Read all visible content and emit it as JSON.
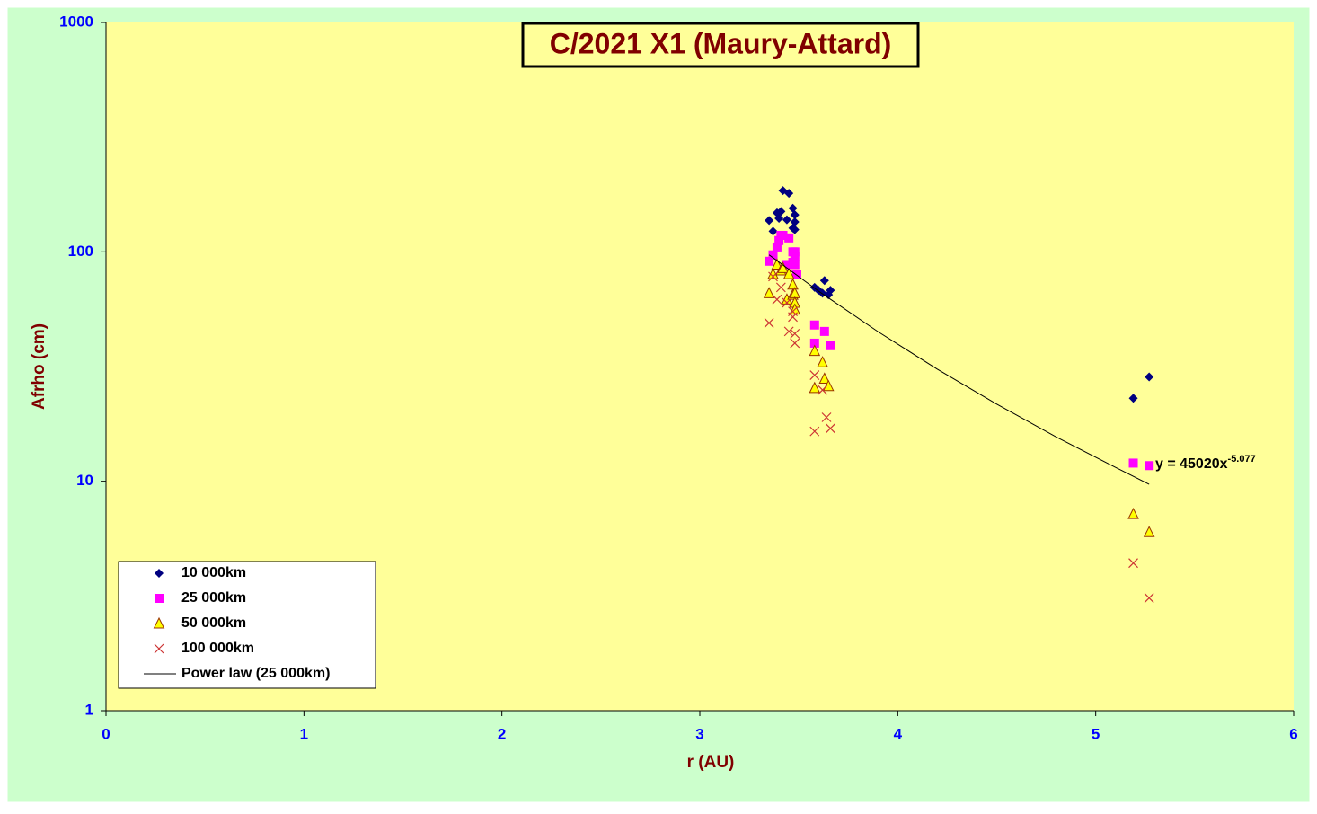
{
  "chart_data": {
    "type": "scatter",
    "title": "C/2021 X1 (Maury-Attard)",
    "x_label": "r (AU)",
    "y_label": "Afrho (cm)",
    "xlim": [
      0,
      6
    ],
    "xticks": [
      0,
      1,
      2,
      3,
      4,
      5,
      6
    ],
    "ylim": [
      1,
      1000
    ],
    "yticks": [
      1,
      10,
      100,
      1000
    ],
    "y_scale": "log",
    "legend": "lower left",
    "background": "#ffff99",
    "outer_background": "#ccffcc",
    "series": [
      {
        "name": "10 000km",
        "marker": "diamond",
        "color": "#000080",
        "x": [
          3.35,
          3.37,
          3.39,
          3.4,
          3.41,
          3.42,
          3.44,
          3.45,
          3.47,
          3.47,
          3.48,
          3.48,
          3.48,
          3.58,
          3.6,
          3.62,
          3.63,
          3.65,
          3.66,
          5.19,
          5.27
        ],
        "values": [
          137,
          123,
          148,
          140,
          150,
          185,
          138,
          180,
          155,
          127,
          145,
          135,
          125,
          70,
          68,
          66,
          75,
          65,
          68,
          23,
          28.5
        ]
      },
      {
        "name": "25 000km",
        "marker": "square",
        "color": "#ff00ff",
        "x": [
          3.35,
          3.37,
          3.39,
          3.4,
          3.41,
          3.42,
          3.44,
          3.45,
          3.47,
          3.47,
          3.48,
          3.48,
          3.48,
          3.49,
          3.58,
          3.58,
          3.63,
          3.66,
          5.19,
          5.27
        ],
        "values": [
          91,
          97,
          105,
          112,
          118,
          118,
          88,
          115,
          100,
          90,
          95,
          100,
          88,
          80,
          48,
          40,
          45,
          39,
          12,
          11.7
        ]
      },
      {
        "name": "50 000km",
        "marker": "triangle",
        "color": "#ffff00",
        "x": [
          3.35,
          3.37,
          3.39,
          3.41,
          3.42,
          3.44,
          3.45,
          3.47,
          3.47,
          3.48,
          3.48,
          3.48,
          3.58,
          3.58,
          3.62,
          3.63,
          3.65,
          5.19,
          5.27
        ],
        "values": [
          66,
          80,
          88,
          83,
          85,
          62,
          80,
          72,
          65,
          66,
          60,
          56,
          37,
          25.5,
          33,
          28,
          26,
          7.2,
          6
        ]
      },
      {
        "name": "100 000km",
        "marker": "x",
        "color": "#cc3333",
        "x": [
          3.35,
          3.37,
          3.39,
          3.41,
          3.44,
          3.45,
          3.47,
          3.47,
          3.48,
          3.48,
          3.58,
          3.58,
          3.62,
          3.64,
          3.66,
          5.19,
          5.27
        ],
        "values": [
          49,
          78,
          62,
          70,
          60,
          45,
          52,
          55,
          44,
          40,
          29,
          16.5,
          25,
          19,
          17,
          4.4,
          3.1
        ]
      },
      {
        "name": "Power law (25 000km)",
        "marker": "line",
        "color": "#000000",
        "x": [
          3.35,
          3.6,
          3.9,
          4.2,
          4.5,
          4.8,
          5.1,
          5.27
        ],
        "values": [
          97,
          67.4,
          44.9,
          30.8,
          21.7,
          15.6,
          11.5,
          9.7
        ]
      }
    ],
    "annotation": {
      "text": "y = 45020x",
      "superscript": "-5.077"
    }
  }
}
